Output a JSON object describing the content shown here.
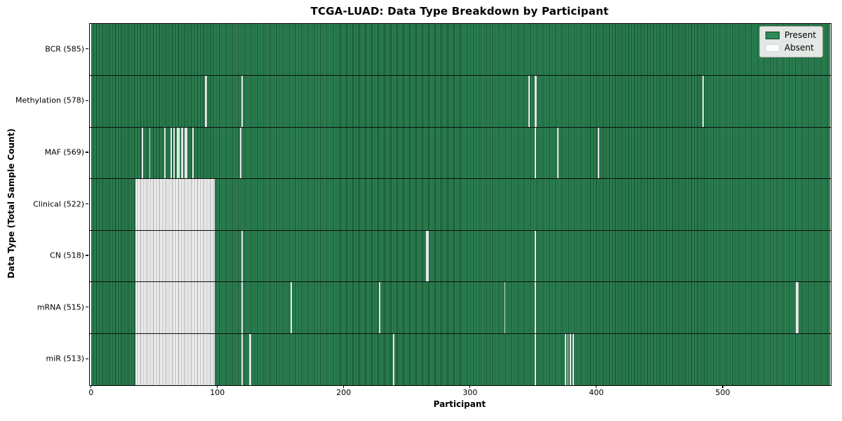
{
  "chart_data": {
    "type": "heatmap",
    "title": "TCGA-LUAD: Data Type Breakdown by Participant",
    "xlabel": "Participant",
    "ylabel": "Data Type (Total Sample Count)",
    "x_ticks": [
      0,
      100,
      200,
      300,
      400,
      500
    ],
    "n_participants": 585,
    "xlim": [
      -1.5,
      585
    ],
    "grid": false,
    "legend": {
      "position": "upper right",
      "items": [
        {
          "label": "Present",
          "color": "#2e8b57"
        },
        {
          "label": "Absent",
          "color": "#ffffff"
        }
      ]
    },
    "colors": {
      "present_fill": "#2e8b57",
      "present_edge": "#143f29",
      "absent_fill": "#ffffff",
      "absent_edge": "#9c9c9c",
      "row_separator": "#0d0d0d"
    },
    "rows": [
      {
        "data_type": "BCR",
        "label": "BCR (585)",
        "present_count": 585,
        "absent_participants": []
      },
      {
        "data_type": "Methylation",
        "label": "Methylation (578)",
        "present_count": 578,
        "absent_participants": [
          90,
          91,
          119,
          346,
          351,
          352,
          484
        ]
      },
      {
        "data_type": "MAF",
        "label": "MAF (569)",
        "present_count": 569,
        "absent_participants": [
          40,
          46,
          58,
          63,
          65,
          68,
          69,
          71,
          72,
          74,
          75,
          80,
          118,
          351,
          369,
          401
        ]
      },
      {
        "data_type": "Clinical",
        "label": "Clinical (522)",
        "present_count": 522,
        "absent_participants": [
          [
            35,
            97
          ]
        ]
      },
      {
        "data_type": "CN",
        "label": "CN (518)",
        "present_count": 518,
        "absent_participants": [
          [
            35,
            97
          ],
          119,
          265,
          266,
          351
        ]
      },
      {
        "data_type": "mRNA",
        "label": "mRNA (515)",
        "present_count": 515,
        "absent_participants": [
          [
            35,
            97
          ],
          119,
          158,
          228,
          327,
          351,
          558,
          559
        ]
      },
      {
        "data_type": "miR",
        "label": "miR (513)",
        "present_count": 513,
        "absent_participants": [
          [
            35,
            97
          ],
          119,
          125,
          126,
          239,
          351,
          375,
          377,
          379,
          381
        ]
      }
    ]
  }
}
